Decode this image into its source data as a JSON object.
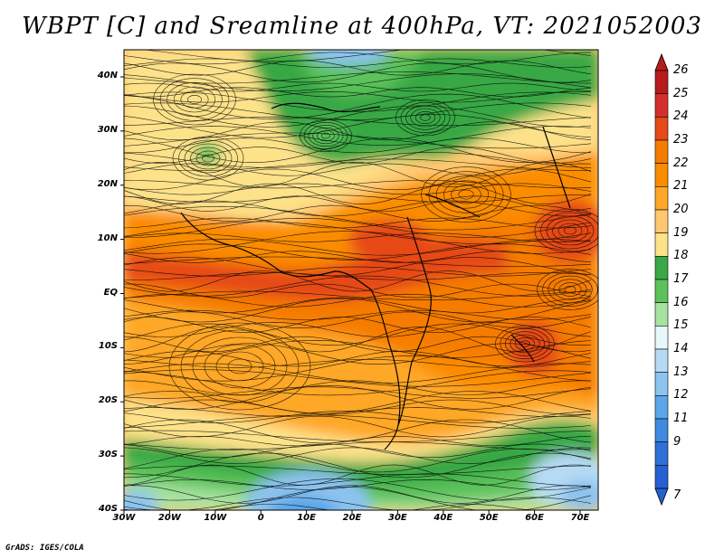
{
  "title": "WBPT [C] and Sreamline at 400hPa, VT: 2021052003",
  "credit": "GrADS: IGES/COLA",
  "axes": {
    "y_labels": [
      "40N",
      "30N",
      "20N",
      "10N",
      "EQ",
      "10S",
      "20S",
      "30S",
      "40S"
    ],
    "x_labels": [
      "30W",
      "20W",
      "10W",
      "0",
      "10E",
      "20E",
      "30E",
      "40E",
      "50E",
      "60E",
      "70E"
    ]
  },
  "colorbar": {
    "labels": [
      "26",
      "25",
      "24",
      "23",
      "22",
      "21",
      "20",
      "19",
      "18",
      "17",
      "16",
      "15",
      "14",
      "13",
      "12",
      "11",
      "9",
      "7"
    ],
    "colors": [
      "#b71c1c",
      "#d32f2f",
      "#e64a19",
      "#f57c00",
      "#fb8c00",
      "#ffa726",
      "#ffc870",
      "#fde28a",
      "#39a845",
      "#5cc25a",
      "#a8e2a0",
      "#e6f8f8",
      "#b6daf4",
      "#8cc3ef",
      "#5aa6e8",
      "#3f8ae0",
      "#2f70d8",
      "#2560d0"
    ]
  }
}
